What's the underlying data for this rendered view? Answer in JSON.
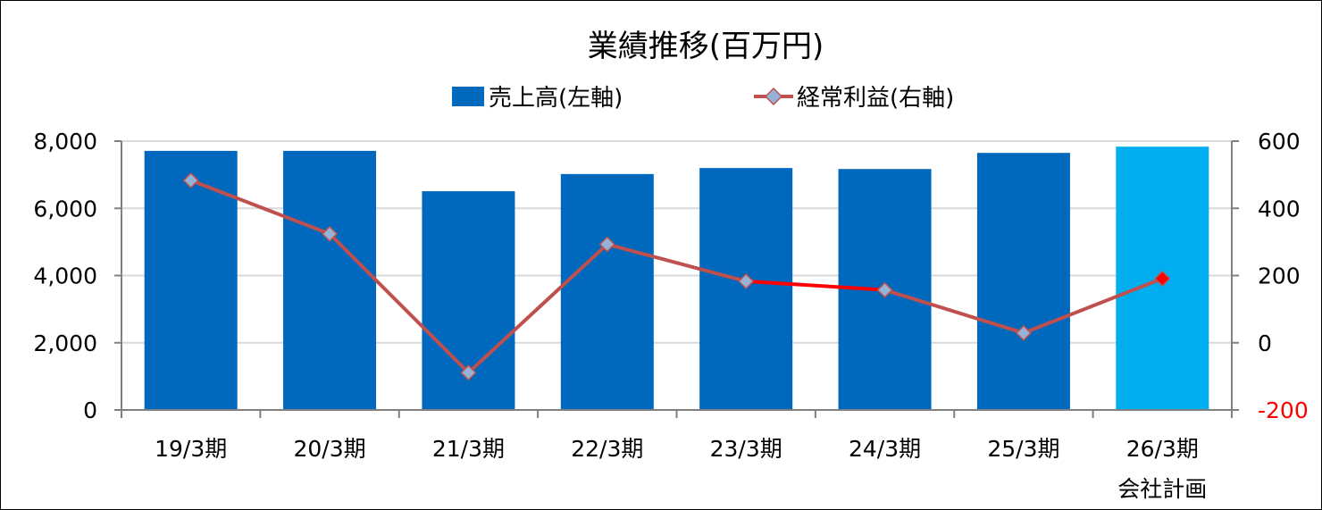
{
  "chart_data": {
    "type": "bar+line",
    "title": "業績推移(百万円)",
    "categories": [
      "19/3期",
      "20/3期",
      "21/3期",
      "22/3期",
      "23/3期",
      "24/3期",
      "25/3期",
      "26/3期"
    ],
    "category_sublabels": [
      "",
      "",
      "",
      "",
      "",
      "",
      "",
      "会社計画"
    ],
    "series": [
      {
        "name": "売上高(左軸)",
        "type": "bar",
        "axis": "left",
        "color": "#0069BE",
        "highlight_color": "#00AEEF",
        "values": [
          7710,
          7710,
          6510,
          7020,
          7200,
          7170,
          7650,
          7835
        ]
      },
      {
        "name": "経常利益(右軸)",
        "type": "line",
        "axis": "right",
        "color": "#C0504D",
        "marker_color": "#95B3D7",
        "highlight_color": "#FF0000",
        "values": [
          483,
          324,
          -89,
          293,
          183,
          157,
          29,
          191
        ]
      }
    ],
    "left_axis": {
      "min": 0,
      "max": 8000,
      "ticks": [
        "0",
        "2,000",
        "4,000",
        "6,000",
        "8,000"
      ],
      "tick_values": [
        0,
        2000,
        4000,
        6000,
        8000
      ]
    },
    "right_axis": {
      "min": -200,
      "max": 600,
      "ticks": [
        "-200",
        "0",
        "200",
        "400",
        "600"
      ],
      "tick_values": [
        -200,
        0,
        200,
        400,
        600
      ],
      "negative_color": "#FF0000"
    },
    "legend": "top-center",
    "grid": true
  }
}
